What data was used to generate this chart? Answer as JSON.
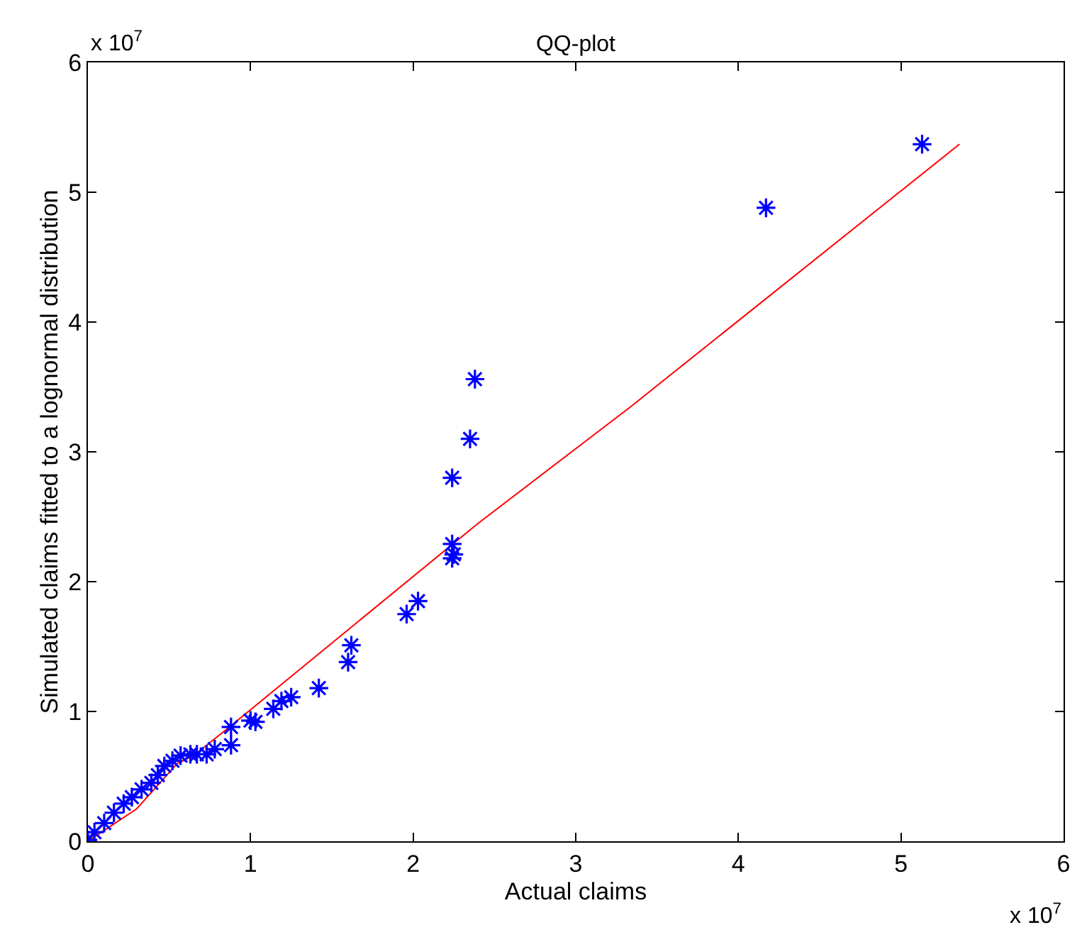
{
  "chart_data": {
    "type": "scatter",
    "title": "QQ-plot",
    "xlabel": "Actual claims",
    "ylabel": "Simulated claims fitted to a lognormal distribution",
    "annotations": [
      "x 10$^{7}$",
      "x 10$^{7}$"
    ],
    "series": [
      {
        "color": "#0000ff",
        "marker": "cross",
        "x": [
          0.0,
          0.04,
          0.1,
          0.16,
          0.22,
          0.27,
          0.33,
          0.39,
          0.43,
          0.47,
          0.52,
          0.57,
          0.63,
          0.67,
          0.73,
          0.78,
          0.88,
          0.88,
          1.0,
          1.03,
          1.14,
          1.19,
          1.25,
          1.42,
          1.6,
          1.62,
          1.96,
          2.03,
          2.24,
          2.25,
          2.24,
          2.24,
          2.35,
          2.38,
          4.17,
          5.13
        ],
        "values": [
          0.01,
          0.07,
          0.14,
          0.22,
          0.29,
          0.34,
          0.4,
          0.45,
          0.51,
          0.58,
          0.62,
          0.66,
          0.67,
          0.67,
          0.67,
          0.71,
          0.74,
          0.88,
          0.93,
          0.92,
          1.02,
          1.08,
          1.11,
          1.18,
          1.38,
          1.51,
          1.75,
          1.85,
          2.18,
          2.21,
          2.29,
          2.8,
          3.1,
          3.56,
          4.88,
          5.37
        ]
      },
      {
        "type": "line",
        "color": "#ff0000",
        "marker": "none",
        "x": [
          0.0,
          0.3,
          0.55,
          0.65,
          0.87,
          2.4,
          3.34,
          5.36
        ],
        "values": [
          0.0,
          0.25,
          0.6,
          0.66,
          0.88,
          2.45,
          3.35,
          5.37
        ]
      }
    ],
    "xlim": [
      0,
      6
    ],
    "ylim": [
      0,
      6
    ],
    "xticks": [
      0,
      1,
      2,
      3,
      4,
      5,
      6
    ],
    "yticks": [
      0,
      1,
      2,
      3,
      4,
      5,
      6
    ]
  }
}
